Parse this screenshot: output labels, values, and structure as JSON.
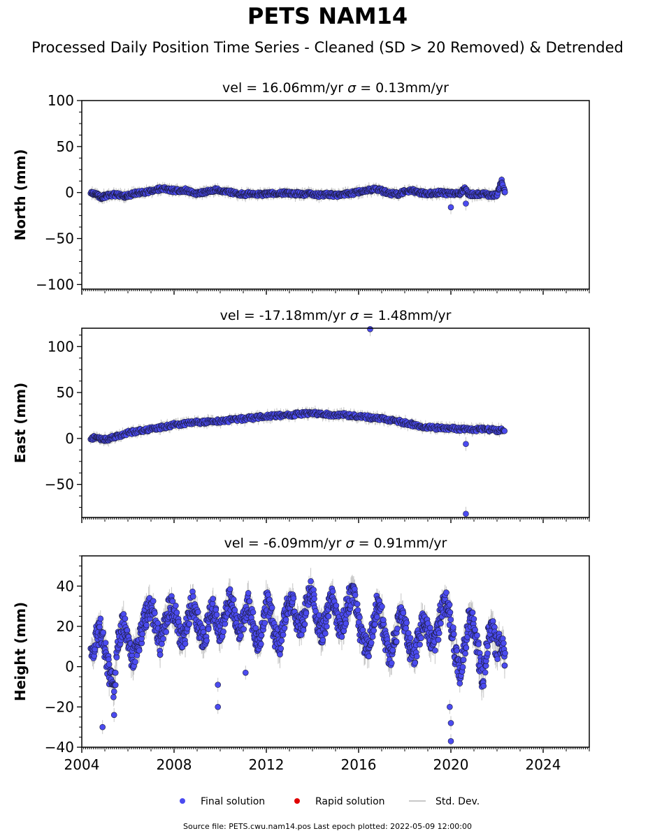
{
  "header": {
    "title": "PETS NAM14",
    "subtitle": "Processed Daily Position Time Series - Cleaned (SD > 20 Removed) & Detrended"
  },
  "footer": {
    "source": "Source file: PETS.cwu.nam14.pos  Last epoch plotted: 2022-05-09 12:00:00"
  },
  "legend": {
    "items": [
      {
        "label": "Final solution",
        "kind": "dot",
        "color": "#4b4bf0"
      },
      {
        "label": "Rapid solution",
        "kind": "dot",
        "color": "#e00000"
      },
      {
        "label": "Std. Dev.",
        "kind": "line",
        "color": "#c8c8c8"
      }
    ]
  },
  "colors": {
    "final": "#4b4bf0",
    "final_edge": "#1a1a3a",
    "stddev": "#a0a0a0"
  },
  "chart_data": [
    {
      "type": "scatter",
      "ylabel": "North (mm)",
      "vel_text": "vel = 16.06mm/yr",
      "sigma_text": " = 0.13mm/yr",
      "sigma_symbol": "σ",
      "xlim": [
        2004.0,
        2026.0
      ],
      "ylim": [
        -105,
        100
      ],
      "yticks": [
        -100,
        -50,
        0,
        50,
        100
      ],
      "yticklabels": [
        "−100",
        "−50",
        "0",
        "50",
        "100"
      ],
      "series": [
        {
          "name": "Final solution",
          "x": [
            2004.4,
            2004.6,
            2004.8,
            2005.0,
            2005.2,
            2005.5,
            2005.8,
            2006.0,
            2006.3,
            2006.6,
            2006.9,
            2007.2,
            2007.5,
            2007.8,
            2008.1,
            2008.4,
            2008.7,
            2009.0,
            2009.3,
            2009.6,
            2009.9,
            2010.2,
            2010.5,
            2010.8,
            2011.1,
            2011.4,
            2011.7,
            2012.0,
            2012.3,
            2012.6,
            2012.9,
            2013.2,
            2013.5,
            2013.8,
            2014.1,
            2014.4,
            2014.7,
            2015.0,
            2015.3,
            2015.6,
            2015.9,
            2016.2,
            2016.5,
            2016.8,
            2017.1,
            2017.4,
            2017.7,
            2018.0,
            2018.3,
            2018.6,
            2018.9,
            2019.2,
            2019.5,
            2019.8,
            2020.1,
            2020.4,
            2020.6,
            2020.8,
            2021.1,
            2021.4,
            2021.7,
            2022.0,
            2022.2,
            2022.35
          ],
          "y": [
            0,
            -2,
            -5,
            -4,
            -3,
            -2,
            -4,
            -3,
            -1,
            0,
            1,
            3,
            4,
            3,
            2,
            3,
            1,
            -1,
            0,
            2,
            3,
            1,
            0,
            -1,
            -2,
            -1,
            -2,
            -2,
            -1,
            -1,
            0,
            -1,
            -2,
            -1,
            -2,
            -3,
            -2,
            -3,
            -2,
            -1,
            0,
            2,
            3,
            4,
            1,
            -1,
            -2,
            1,
            2,
            0,
            -1,
            -1,
            0,
            -1,
            -1,
            -1,
            4,
            -2,
            -2,
            -1,
            -3,
            -3,
            12,
            -2
          ],
          "outliers": {
            "x": [
              2020.0,
              2020.65
            ],
            "y": [
              -16,
              -12
            ]
          }
        }
      ]
    },
    {
      "type": "scatter",
      "ylabel": "East (mm)",
      "vel_text": "vel = -17.18mm/yr",
      "sigma_text": " = 1.48mm/yr",
      "sigma_symbol": "σ",
      "xlim": [
        2004.0,
        2026.0
      ],
      "ylim": [
        -86,
        120
      ],
      "yticks": [
        -50,
        0,
        50,
        100
      ],
      "yticklabels": [
        "−50",
        "0",
        "50",
        "100"
      ],
      "series": [
        {
          "name": "Final solution",
          "x": [
            2004.4,
            2004.7,
            2005.0,
            2005.3,
            2005.6,
            2006.0,
            2006.4,
            2006.8,
            2007.2,
            2007.6,
            2008.0,
            2008.4,
            2008.8,
            2009.2,
            2009.6,
            2010.0,
            2010.4,
            2010.8,
            2011.2,
            2011.6,
            2012.0,
            2012.4,
            2012.8,
            2013.2,
            2013.6,
            2014.0,
            2014.4,
            2014.8,
            2015.2,
            2015.6,
            2016.0,
            2016.4,
            2016.8,
            2017.2,
            2017.6,
            2018.0,
            2018.4,
            2018.8,
            2019.2,
            2019.6,
            2020.0,
            2020.4,
            2020.8,
            2021.2,
            2021.6,
            2022.0,
            2022.35
          ],
          "y": [
            1,
            0,
            -1,
            1,
            3,
            6,
            8,
            9,
            11,
            13,
            15,
            16,
            17,
            18,
            19,
            19,
            20,
            21,
            22,
            23,
            24,
            25,
            25,
            26,
            27,
            27,
            27,
            26,
            26,
            25,
            24,
            23,
            22,
            21,
            19,
            17,
            15,
            13,
            12,
            11,
            11,
            10,
            10,
            10,
            10,
            9,
            9
          ],
          "outliers": {
            "x": [
              2016.5,
              2020.65,
              2020.65
            ],
            "y": [
              119,
              -6,
              -82
            ]
          }
        }
      ]
    },
    {
      "type": "scatter",
      "ylabel": "Height (mm)",
      "vel_text": "vel = -6.09mm/yr",
      "sigma_text": " = 0.91mm/yr",
      "sigma_symbol": "σ",
      "xlim": [
        2004.0,
        2026.0
      ],
      "ylim": [
        -40,
        55
      ],
      "yticks": [
        -40,
        -20,
        0,
        20,
        40
      ],
      "yticklabels": [
        "−40",
        "−20",
        "0",
        "20",
        "40"
      ],
      "xticks": [
        2004,
        2008,
        2012,
        2016,
        2020,
        2024
      ],
      "xticklabels": [
        "2004",
        "2008",
        "2012",
        "2016",
        "2020",
        "2024"
      ],
      "series": [
        {
          "name": "Final solution",
          "x": [
            2004.4,
            2004.6,
            2004.8,
            2005.0,
            2005.2,
            2005.4,
            2005.6,
            2005.8,
            2006.0,
            2006.2,
            2006.4,
            2006.6,
            2006.8,
            2007.0,
            2007.2,
            2007.4,
            2007.6,
            2007.8,
            2008.0,
            2008.2,
            2008.4,
            2008.6,
            2008.8,
            2009.0,
            2009.2,
            2009.4,
            2009.6,
            2009.8,
            2010.0,
            2010.2,
            2010.4,
            2010.6,
            2010.8,
            2011.0,
            2011.2,
            2011.4,
            2011.6,
            2011.8,
            2012.0,
            2012.2,
            2012.4,
            2012.6,
            2012.8,
            2013.0,
            2013.2,
            2013.4,
            2013.6,
            2013.8,
            2014.0,
            2014.2,
            2014.4,
            2014.6,
            2014.8,
            2015.0,
            2015.2,
            2015.4,
            2015.6,
            2015.8,
            2016.0,
            2016.2,
            2016.4,
            2016.6,
            2016.8,
            2017.0,
            2017.2,
            2017.4,
            2017.6,
            2017.8,
            2018.0,
            2018.2,
            2018.4,
            2018.6,
            2018.8,
            2019.0,
            2019.2,
            2019.4,
            2019.6,
            2019.8,
            2020.0,
            2020.2,
            2020.4,
            2020.6,
            2020.8,
            2021.0,
            2021.2,
            2021.4,
            2021.6,
            2021.8,
            2022.0,
            2022.2,
            2022.35
          ],
          "y": [
            5,
            14,
            18,
            8,
            -4,
            -12,
            15,
            22,
            12,
            4,
            8,
            18,
            26,
            30,
            22,
            10,
            20,
            30,
            28,
            18,
            14,
            22,
            32,
            24,
            14,
            18,
            30,
            26,
            16,
            26,
            34,
            28,
            18,
            22,
            32,
            22,
            10,
            18,
            32,
            28,
            14,
            12,
            24,
            34,
            30,
            20,
            22,
            36,
            38,
            24,
            16,
            24,
            34,
            28,
            18,
            24,
            34,
            36,
            22,
            12,
            8,
            20,
            30,
            24,
            10,
            4,
            16,
            26,
            22,
            10,
            4,
            14,
            24,
            20,
            10,
            16,
            30,
            32,
            22,
            6,
            -4,
            10,
            24,
            20,
            6,
            -8,
            14,
            20,
            8,
            14,
            0
          ],
          "outliers": {
            "x": [
              2004.9,
              2005.4,
              2009.9,
              2009.9,
              2011.1,
              2020.0,
              2020.0,
              2019.95
            ],
            "y": [
              -30,
              -24,
              -20,
              -9,
              -3,
              -37,
              -28,
              -20
            ]
          }
        }
      ]
    }
  ]
}
